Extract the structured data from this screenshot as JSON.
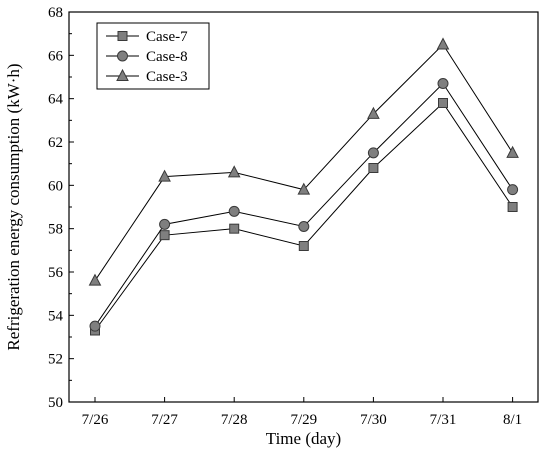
{
  "chart_data": {
    "type": "line",
    "xlabel": "Time (day)",
    "ylabel": "Refrigeration energy consumption (kW·h)",
    "categories": [
      "7/26",
      "7/27",
      "7/28",
      "7/29",
      "7/30",
      "7/31",
      "8/1"
    ],
    "ylim": [
      50,
      68
    ],
    "yticks": [
      50,
      52,
      54,
      56,
      58,
      60,
      62,
      64,
      66,
      68
    ],
    "grid": false,
    "legend_position": "top-left",
    "series": [
      {
        "name": "Case-7",
        "marker": "square",
        "values": [
          53.3,
          57.7,
          58.0,
          57.2,
          60.8,
          63.8,
          59.0
        ]
      },
      {
        "name": "Case-8",
        "marker": "circle",
        "values": [
          53.5,
          58.2,
          58.8,
          58.1,
          61.5,
          64.7,
          59.8
        ]
      },
      {
        "name": "Case-3",
        "marker": "triangle",
        "values": [
          55.6,
          60.4,
          60.6,
          59.8,
          63.3,
          66.5,
          61.5
        ]
      }
    ],
    "colors": {
      "line": "#000000",
      "marker_fill": "#7f7f7f",
      "marker_stroke": "#3a3a3a"
    }
  }
}
